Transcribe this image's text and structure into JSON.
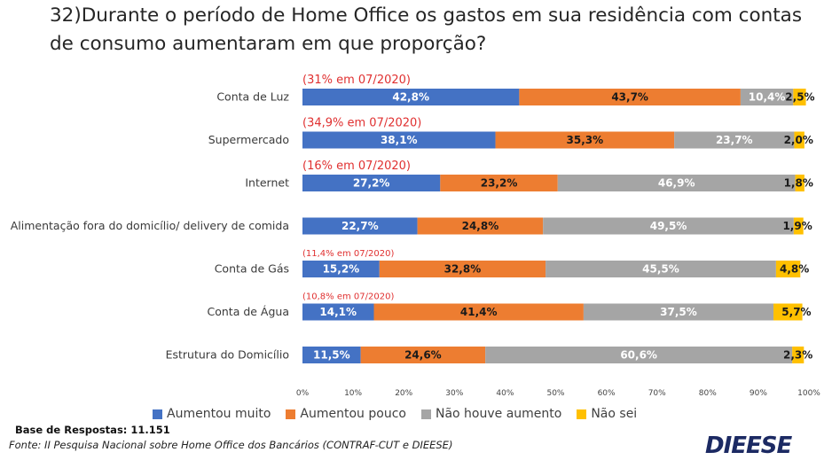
{
  "chart_data": {
    "type": "bar",
    "orientation": "horizontal",
    "stacked": true,
    "title": "32)Durante o período de Home Office os gastos em sua residência com contas de consumo aumentaram em que proporção?",
    "categories": [
      "Conta de Luz",
      "Supermercado",
      "Internet",
      "Alimentação fora do domicílio/ delivery de comida",
      "Conta de Gás",
      "Conta de Água",
      "Estrutura do Domicílio"
    ],
    "series": [
      {
        "name": "Aumentou muito",
        "color": "#4472c4",
        "values": [
          42.8,
          38.1,
          27.2,
          22.7,
          15.2,
          14.1,
          11.5
        ]
      },
      {
        "name": "Aumentou pouco",
        "color": "#ed7d31",
        "values": [
          43.7,
          35.3,
          23.2,
          24.8,
          32.8,
          41.4,
          24.6
        ]
      },
      {
        "name": "Não houve aumento",
        "color": "#a5a5a5",
        "values": [
          10.4,
          23.7,
          46.9,
          49.5,
          45.5,
          37.5,
          60.6
        ]
      },
      {
        "name": "Não sei",
        "color": "#ffc000",
        "values": [
          2.5,
          2.0,
          1.8,
          1.9,
          4.8,
          5.7,
          2.3
        ]
      }
    ],
    "data_labels": [
      [
        "42,8%",
        "43,7%",
        "10,4%",
        "2,5%"
      ],
      [
        "38,1%",
        "35,3%",
        "23,7%",
        "2,0%"
      ],
      [
        "27,2%",
        "23,2%",
        "46,9%",
        "1,8%"
      ],
      [
        "22,7%",
        "24,8%",
        "49,5%",
        "1,9%"
      ],
      [
        "15,2%",
        "32,8%",
        "45,5%",
        "4,8%"
      ],
      [
        "14,1%",
        "41,4%",
        "37,5%",
        "5,7%"
      ],
      [
        "11,5%",
        "24,6%",
        "60,6%",
        "2,3%"
      ]
    ],
    "annotations": [
      {
        "category_index": 0,
        "text": "(31% em 07/2020)",
        "size": "large"
      },
      {
        "category_index": 1,
        "text": "(34,9% em 07/2020)",
        "size": "large"
      },
      {
        "category_index": 2,
        "text": "(16% em 07/2020)",
        "size": "large"
      },
      {
        "category_index": 4,
        "text": "(11,4% em 07/2020)",
        "size": "small"
      },
      {
        "category_index": 5,
        "text": "(10,8% em 07/2020)",
        "size": "small"
      }
    ],
    "x_ticks": [
      "0%",
      "10%",
      "20%",
      "30%",
      "40%",
      "50%",
      "60%",
      "70%",
      "80%",
      "90%",
      "100%"
    ],
    "xlim": [
      0,
      100
    ],
    "legend_position": "bottom",
    "grid": false
  },
  "footer": {
    "base": "Base de Respostas: 11.151",
    "source": "Fonte: II Pesquisa Nacional sobre Home Office dos Bancários (CONTRAF-CUT e DIEESE)",
    "logo": "DIEESE"
  }
}
